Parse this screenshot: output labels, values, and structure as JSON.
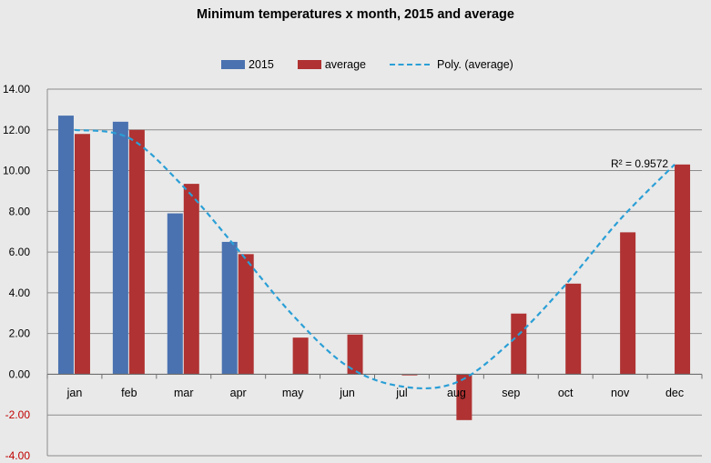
{
  "chart_data": {
    "type": "bar",
    "title": "Minimum temperatures x month, 2015 and average",
    "categories": [
      "jan",
      "feb",
      "mar",
      "apr",
      "may",
      "jun",
      "jul",
      "aug",
      "sep",
      "oct",
      "nov",
      "dec"
    ],
    "series": [
      {
        "name": "2015",
        "color": "#4a72b0",
        "values": [
          12.7,
          12.4,
          7.9,
          6.5,
          null,
          null,
          null,
          null,
          null,
          null,
          null,
          null
        ]
      },
      {
        "name": "average",
        "color": "#b03232",
        "values": [
          11.8,
          12.0,
          9.35,
          5.9,
          1.8,
          1.95,
          -0.05,
          -2.25,
          2.98,
          4.45,
          6.97,
          10.3
        ]
      }
    ],
    "trendline": {
      "name": "Poly. (average)",
      "color": "#2a9fd6",
      "values": [
        12.0,
        11.6,
        9.2,
        6.1,
        2.9,
        0.4,
        -0.6,
        -0.4,
        1.6,
        4.4,
        7.6,
        10.3
      ],
      "r_squared_label": "R² = 0.9572"
    },
    "ylim": [
      -4,
      14
    ],
    "yticks": [
      "14.00",
      "12.00",
      "10.00",
      "8.00",
      "6.00",
      "4.00",
      "2.00",
      "0.00",
      "-2.00",
      "-4.00"
    ],
    "ytick_values": [
      14,
      12,
      10,
      8,
      6,
      4,
      2,
      0,
      -2,
      -4
    ],
    "negative_tick_color": "#c00000",
    "legend_position": "top-center",
    "grid": true
  }
}
